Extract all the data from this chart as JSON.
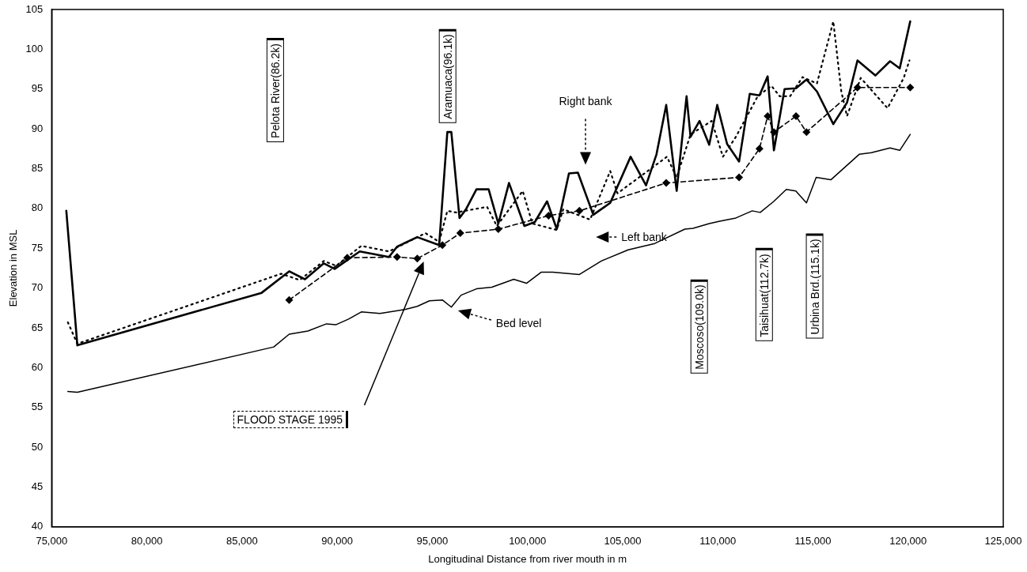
{
  "chart_data": {
    "type": "line",
    "xlabel": "Longitudinal Distance from river mouth in m",
    "ylabel": "Elevation in MSL",
    "xlim": [
      75000,
      125000
    ],
    "ylim": [
      40,
      105
    ],
    "xticks": [
      {
        "value": 75000,
        "label": "75,000"
      },
      {
        "value": 80000,
        "label": "80,000"
      },
      {
        "value": 85000,
        "label": "85,000"
      },
      {
        "value": 90000,
        "label": "90,000"
      },
      {
        "value": 95000,
        "label": "95,000"
      },
      {
        "value": 100000,
        "label": "100,000"
      },
      {
        "value": 105000,
        "label": "105,000"
      },
      {
        "value": 110000,
        "label": "110,000"
      },
      {
        "value": 115000,
        "label": "115,000"
      },
      {
        "value": 120000,
        "label": "120,000"
      },
      {
        "value": 125000,
        "label": "125,000"
      }
    ],
    "yticks": [
      40,
      45,
      50,
      55,
      60,
      65,
      70,
      75,
      80,
      85,
      90,
      95,
      100,
      105
    ],
    "grid": false,
    "legend": false,
    "series": [
      {
        "color": "#000000",
        "line_style": "solid",
        "marker": "none",
        "x": [
          75770,
          76350,
          86030,
          87480,
          88310,
          89300,
          89870,
          91190,
          92720,
          93150,
          94210,
          95360,
          95790,
          96000,
          96430,
          96770,
          97320,
          97960,
          98470,
          99030,
          99840,
          100390,
          101030,
          101540,
          102180,
          102650,
          103460,
          104350,
          105420,
          106230,
          106780,
          107290,
          107840,
          108360,
          108570,
          109040,
          109550,
          109970,
          110490,
          111120,
          111680,
          112190,
          112620,
          112950,
          113510,
          114110,
          114660,
          115210,
          116070,
          116790,
          117340,
          118280,
          119050,
          119560,
          120110
        ],
        "values": [
          79.7,
          62.8,
          69.4,
          72.1,
          71.1,
          73.1,
          72.4,
          74.6,
          73.9,
          75.2,
          76.4,
          75.4,
          89.6,
          89.6,
          78.8,
          79.9,
          82.4,
          82.4,
          78.1,
          83.2,
          77.8,
          78.3,
          80.9,
          77.4,
          84.4,
          84.5,
          79.2,
          80.7,
          86.5,
          82.9,
          86.8,
          93.0,
          82.2,
          94.1,
          89.0,
          91.0,
          88.0,
          93.0,
          88.1,
          85.9,
          94.4,
          94.2,
          96.6,
          87.3,
          95.0,
          95.1,
          96.2,
          94.7,
          90.6,
          93.3,
          98.6,
          96.7,
          98.5,
          97.6,
          103.5
        ]
      },
      {
        "color": "#000000",
        "line_style": "dotted",
        "marker": "none",
        "x": [
          75850,
          76350,
          87060,
          88030,
          89300,
          89950,
          91270,
          92720,
          94640,
          95360,
          95790,
          96250,
          97880,
          98390,
          99750,
          100260,
          101540,
          101880,
          103290,
          104350,
          104730,
          107330,
          107840,
          108570,
          109680,
          110270,
          110950,
          112100,
          112820,
          113250,
          113800,
          114450,
          115210,
          116070,
          116490,
          116790,
          117510,
          118920,
          119770,
          120070
        ],
        "values": [
          65.7,
          63.0,
          71.8,
          71.0,
          73.4,
          72.8,
          75.3,
          74.6,
          76.9,
          75.8,
          79.7,
          79.5,
          80.2,
          77.8,
          82.2,
          78.1,
          77.3,
          79.9,
          78.6,
          84.7,
          81.9,
          86.5,
          83.9,
          89.3,
          91.0,
          86.5,
          89.0,
          94.1,
          95.4,
          94.1,
          94.1,
          96.5,
          95.7,
          103.5,
          94.7,
          91.6,
          96.4,
          92.6,
          96.4,
          98.6
        ]
      },
      {
        "color": "#000000",
        "line_style": "dashed",
        "marker": "diamond",
        "x": [
          87480,
          90530,
          93150,
          94210,
          95530,
          96470,
          98470,
          101110,
          102730,
          107290,
          111120,
          112190,
          112620,
          112950,
          114110,
          114660,
          117340,
          120110
        ],
        "values": [
          68.5,
          73.8,
          73.9,
          73.7,
          75.4,
          76.9,
          77.4,
          79.1,
          79.7,
          83.2,
          83.9,
          87.5,
          91.6,
          89.6,
          91.6,
          89.6,
          95.2,
          95.2
        ]
      },
      {
        "color": "#000000",
        "line_style": "solid",
        "marker": "none",
        "x": [
          75850,
          76350,
          86670,
          87480,
          88460,
          89440,
          89950,
          90600,
          91270,
          92250,
          93560,
          94210,
          94850,
          95530,
          96000,
          96510,
          97320,
          98130,
          99280,
          99950,
          100730,
          101330,
          102730,
          103880,
          105290,
          106690,
          108270,
          108700,
          109550,
          110100,
          110950,
          111810,
          112230,
          112950,
          113600,
          114100,
          114660,
          115170,
          115940,
          117430,
          118070,
          119050,
          119560,
          120110
        ],
        "values": [
          57.0,
          56.9,
          62.6,
          64.2,
          64.6,
          65.5,
          65.4,
          66.1,
          67.0,
          66.8,
          67.3,
          67.7,
          68.4,
          68.5,
          67.6,
          69.1,
          69.9,
          70.1,
          71.1,
          70.6,
          72.0,
          72.0,
          71.7,
          73.4,
          74.8,
          75.6,
          77.4,
          77.5,
          78.1,
          78.4,
          78.8,
          79.7,
          79.5,
          80.9,
          82.4,
          82.2,
          80.7,
          83.9,
          83.6,
          86.8,
          87.0,
          87.6,
          87.3,
          89.3
        ]
      }
    ],
    "annotations": [
      "Pelota River(86.2k)",
      "Aramuaca(96.1k)",
      "Moscoso(109.0k)",
      "Taisihuat(112.7k)",
      "Urbina Brd.(115.1k)",
      "Right bank",
      "Left bank",
      "Bed level",
      "FLOOD STAGE 1995"
    ]
  }
}
